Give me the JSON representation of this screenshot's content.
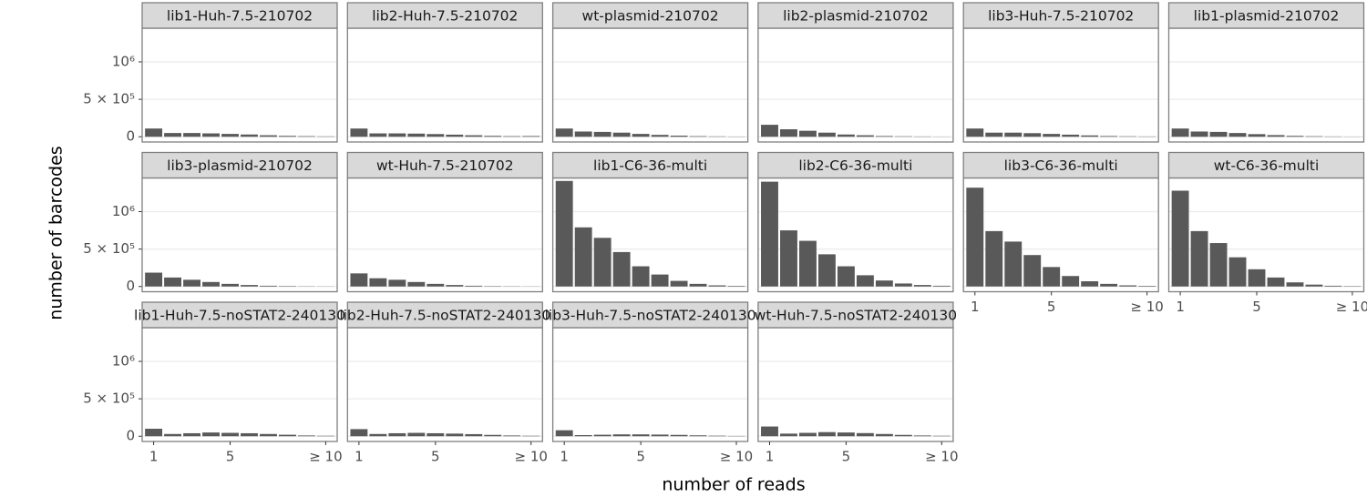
{
  "chart_data": {
    "type": "bar",
    "xlabel": "number of reads",
    "ylabel": "number of barcodes",
    "color": "#595959",
    "categories": [
      "1",
      null,
      null,
      null,
      "5",
      null,
      null,
      null,
      null,
      "≥ 10"
    ],
    "ylim": [
      -70000,
      1450000
    ],
    "yticks": [
      0,
      {
        "value": 500000,
        "label": "5 × 10⁵"
      },
      {
        "value": 1000000,
        "label": "10⁶"
      }
    ],
    "grid": true,
    "facets": [
      {
        "title": "lib1-Huh-7.5-210702",
        "values": [
          110000,
          50000,
          50000,
          45000,
          38000,
          30000,
          20000,
          12000,
          8000,
          5000
        ]
      },
      {
        "title": "lib2-Huh-7.5-210702",
        "values": [
          110000,
          45000,
          45000,
          42000,
          36000,
          28000,
          20000,
          12000,
          8000,
          10000
        ]
      },
      {
        "title": "wt-plasmid-210702",
        "values": [
          110000,
          70000,
          65000,
          55000,
          38000,
          25000,
          15000,
          8000,
          5000,
          3000
        ]
      },
      {
        "title": "lib2-plasmid-210702",
        "values": [
          160000,
          100000,
          80000,
          55000,
          30000,
          20000,
          10000,
          6000,
          4000,
          2000
        ]
      },
      {
        "title": "lib3-Huh-7.5-210702",
        "values": [
          110000,
          55000,
          55000,
          48000,
          38000,
          28000,
          18000,
          10000,
          6000,
          4000
        ]
      },
      {
        "title": "lib1-plasmid-210702",
        "values": [
          110000,
          70000,
          65000,
          50000,
          35000,
          22000,
          12000,
          7000,
          4000,
          2000
        ]
      },
      {
        "title": "lib3-plasmid-210702",
        "values": [
          185000,
          120000,
          90000,
          60000,
          35000,
          20000,
          10000,
          6000,
          3000,
          2000
        ]
      },
      {
        "title": "wt-Huh-7.5-210702",
        "values": [
          175000,
          110000,
          90000,
          60000,
          35000,
          20000,
          10000,
          5000,
          3000,
          2000
        ]
      },
      {
        "title": "lib1-C6-36-multi",
        "values": [
          1410000,
          790000,
          650000,
          460000,
          270000,
          160000,
          75000,
          35000,
          15000,
          8000
        ]
      },
      {
        "title": "lib2-C6-36-multi",
        "values": [
          1400000,
          750000,
          610000,
          430000,
          270000,
          150000,
          80000,
          40000,
          20000,
          10000
        ]
      },
      {
        "title": "lib3-C6-36-multi",
        "values": [
          1320000,
          740000,
          600000,
          420000,
          260000,
          140000,
          70000,
          35000,
          15000,
          8000
        ]
      },
      {
        "title": "wt-C6-36-multi",
        "values": [
          1280000,
          740000,
          580000,
          390000,
          230000,
          120000,
          55000,
          25000,
          10000,
          5000
        ]
      },
      {
        "title": "lib1-Huh-7.5-noSTAT2-240130",
        "values": [
          100000,
          30000,
          40000,
          50000,
          45000,
          40000,
          30000,
          20000,
          10000,
          6000
        ]
      },
      {
        "title": "lib2-Huh-7.5-noSTAT2-240130",
        "values": [
          95000,
          30000,
          40000,
          45000,
          40000,
          35000,
          28000,
          18000,
          10000,
          6000
        ]
      },
      {
        "title": "lib3-Huh-7.5-noSTAT2-240130",
        "values": [
          80000,
          15000,
          20000,
          25000,
          25000,
          22000,
          18000,
          12000,
          7000,
          4000
        ]
      },
      {
        "title": "wt-Huh-7.5-noSTAT2-240130",
        "values": [
          130000,
          35000,
          45000,
          55000,
          50000,
          42000,
          30000,
          18000,
          10000,
          6000
        ]
      }
    ]
  }
}
